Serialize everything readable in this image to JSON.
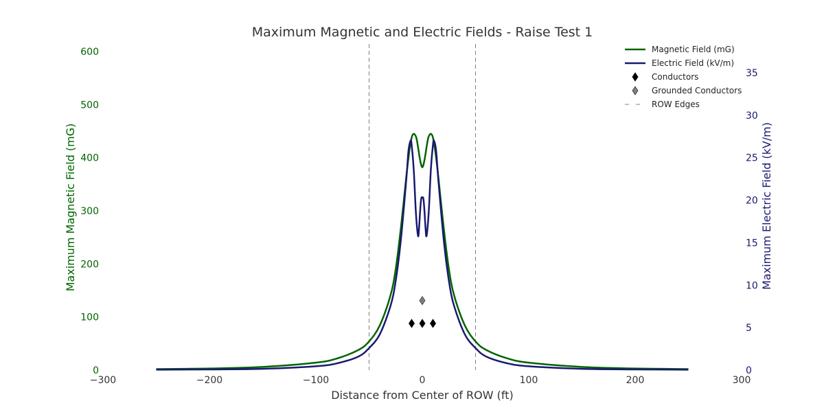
{
  "chart_data": {
    "type": "line",
    "title": "Maximum Magnetic and Electric Fields - Raise Test 1",
    "xlabel": "Distance from Center of ROW (ft)",
    "ylabel_left": "Maximum Magnetic Field (mG)",
    "ylabel_right": "Maximum Electric Field (kV/m)",
    "xlim": [
      -300,
      300
    ],
    "ylim_left": [
      0,
      600
    ],
    "ylim_right": [
      0,
      37.5
    ],
    "x_ticks": [
      -300,
      -200,
      -100,
      0,
      100,
      200,
      300
    ],
    "y_left_ticks": [
      0,
      100,
      200,
      300,
      400,
      500,
      600
    ],
    "y_right_ticks": [
      0,
      5,
      10,
      15,
      20,
      25,
      30,
      35
    ],
    "grid": false,
    "legend_position": "top-right",
    "colors": {
      "magnetic": "#006400",
      "electric": "#191970",
      "conductors": "#000000",
      "grounded": "#808080",
      "row_edges": "#808080"
    },
    "legend": [
      {
        "label": "Magnetic Field (mG)",
        "kind": "line",
        "color": "#006400"
      },
      {
        "label": "Electric Field (kV/m)",
        "kind": "line",
        "color": "#191970"
      },
      {
        "label": "Conductors",
        "kind": "diamond",
        "color": "#000000"
      },
      {
        "label": "Grounded Conductors",
        "kind": "diamond",
        "color": "#808080"
      },
      {
        "label": "ROW Edges",
        "kind": "dash",
        "color": "#808080"
      }
    ],
    "series": [
      {
        "name": "Magnetic Field (mG)",
        "axis": "left",
        "x": [
          -250,
          -200,
          -150,
          -100,
          -80,
          -60,
          -50,
          -40,
          -30,
          -25,
          -20,
          -15,
          -12,
          -10,
          -8,
          -6,
          -5,
          -4,
          -2,
          0,
          2,
          4,
          5,
          6,
          8,
          10,
          12,
          15,
          20,
          25,
          30,
          40,
          50,
          60,
          80,
          100,
          150,
          200,
          250
        ],
        "y": [
          2,
          3,
          6,
          14,
          22,
          38,
          54,
          84,
          140,
          190,
          270,
          365,
          415,
          438,
          445,
          440,
          432,
          420,
          395,
          382,
          395,
          420,
          432,
          440,
          445,
          438,
          415,
          365,
          270,
          190,
          140,
          84,
          54,
          38,
          22,
          14,
          6,
          3,
          2
        ]
      },
      {
        "name": "Electric Field (kV/m)",
        "axis": "right",
        "x": [
          -250,
          -200,
          -150,
          -100,
          -80,
          -60,
          -50,
          -40,
          -30,
          -25,
          -20,
          -15,
          -13,
          -11,
          -10,
          -8,
          -6,
          -4,
          -3,
          -2,
          -1,
          0,
          1,
          2,
          3,
          4,
          6,
          8,
          10,
          11,
          13,
          15,
          20,
          25,
          30,
          40,
          50,
          60,
          80,
          100,
          150,
          200,
          250
        ],
        "y": [
          0.05,
          0.08,
          0.15,
          0.45,
          0.8,
          1.6,
          2.6,
          4.2,
          7.5,
          10.5,
          15.5,
          22.5,
          25.8,
          27.0,
          26.5,
          23.5,
          18.5,
          15.8,
          16.8,
          18.8,
          20.2,
          20.3,
          20.2,
          18.8,
          16.8,
          15.8,
          18.5,
          23.5,
          26.5,
          27.0,
          25.8,
          22.5,
          15.5,
          10.5,
          7.5,
          4.2,
          2.6,
          1.6,
          0.8,
          0.45,
          0.15,
          0.08,
          0.05
        ]
      }
    ],
    "conductors": [
      {
        "x": -10,
        "y": 88
      },
      {
        "x": 0,
        "y": 88
      },
      {
        "x": 10,
        "y": 88
      }
    ],
    "grounded_conductors": [
      {
        "x": 0,
        "y": 131
      }
    ],
    "row_edges": [
      -50,
      50
    ]
  }
}
